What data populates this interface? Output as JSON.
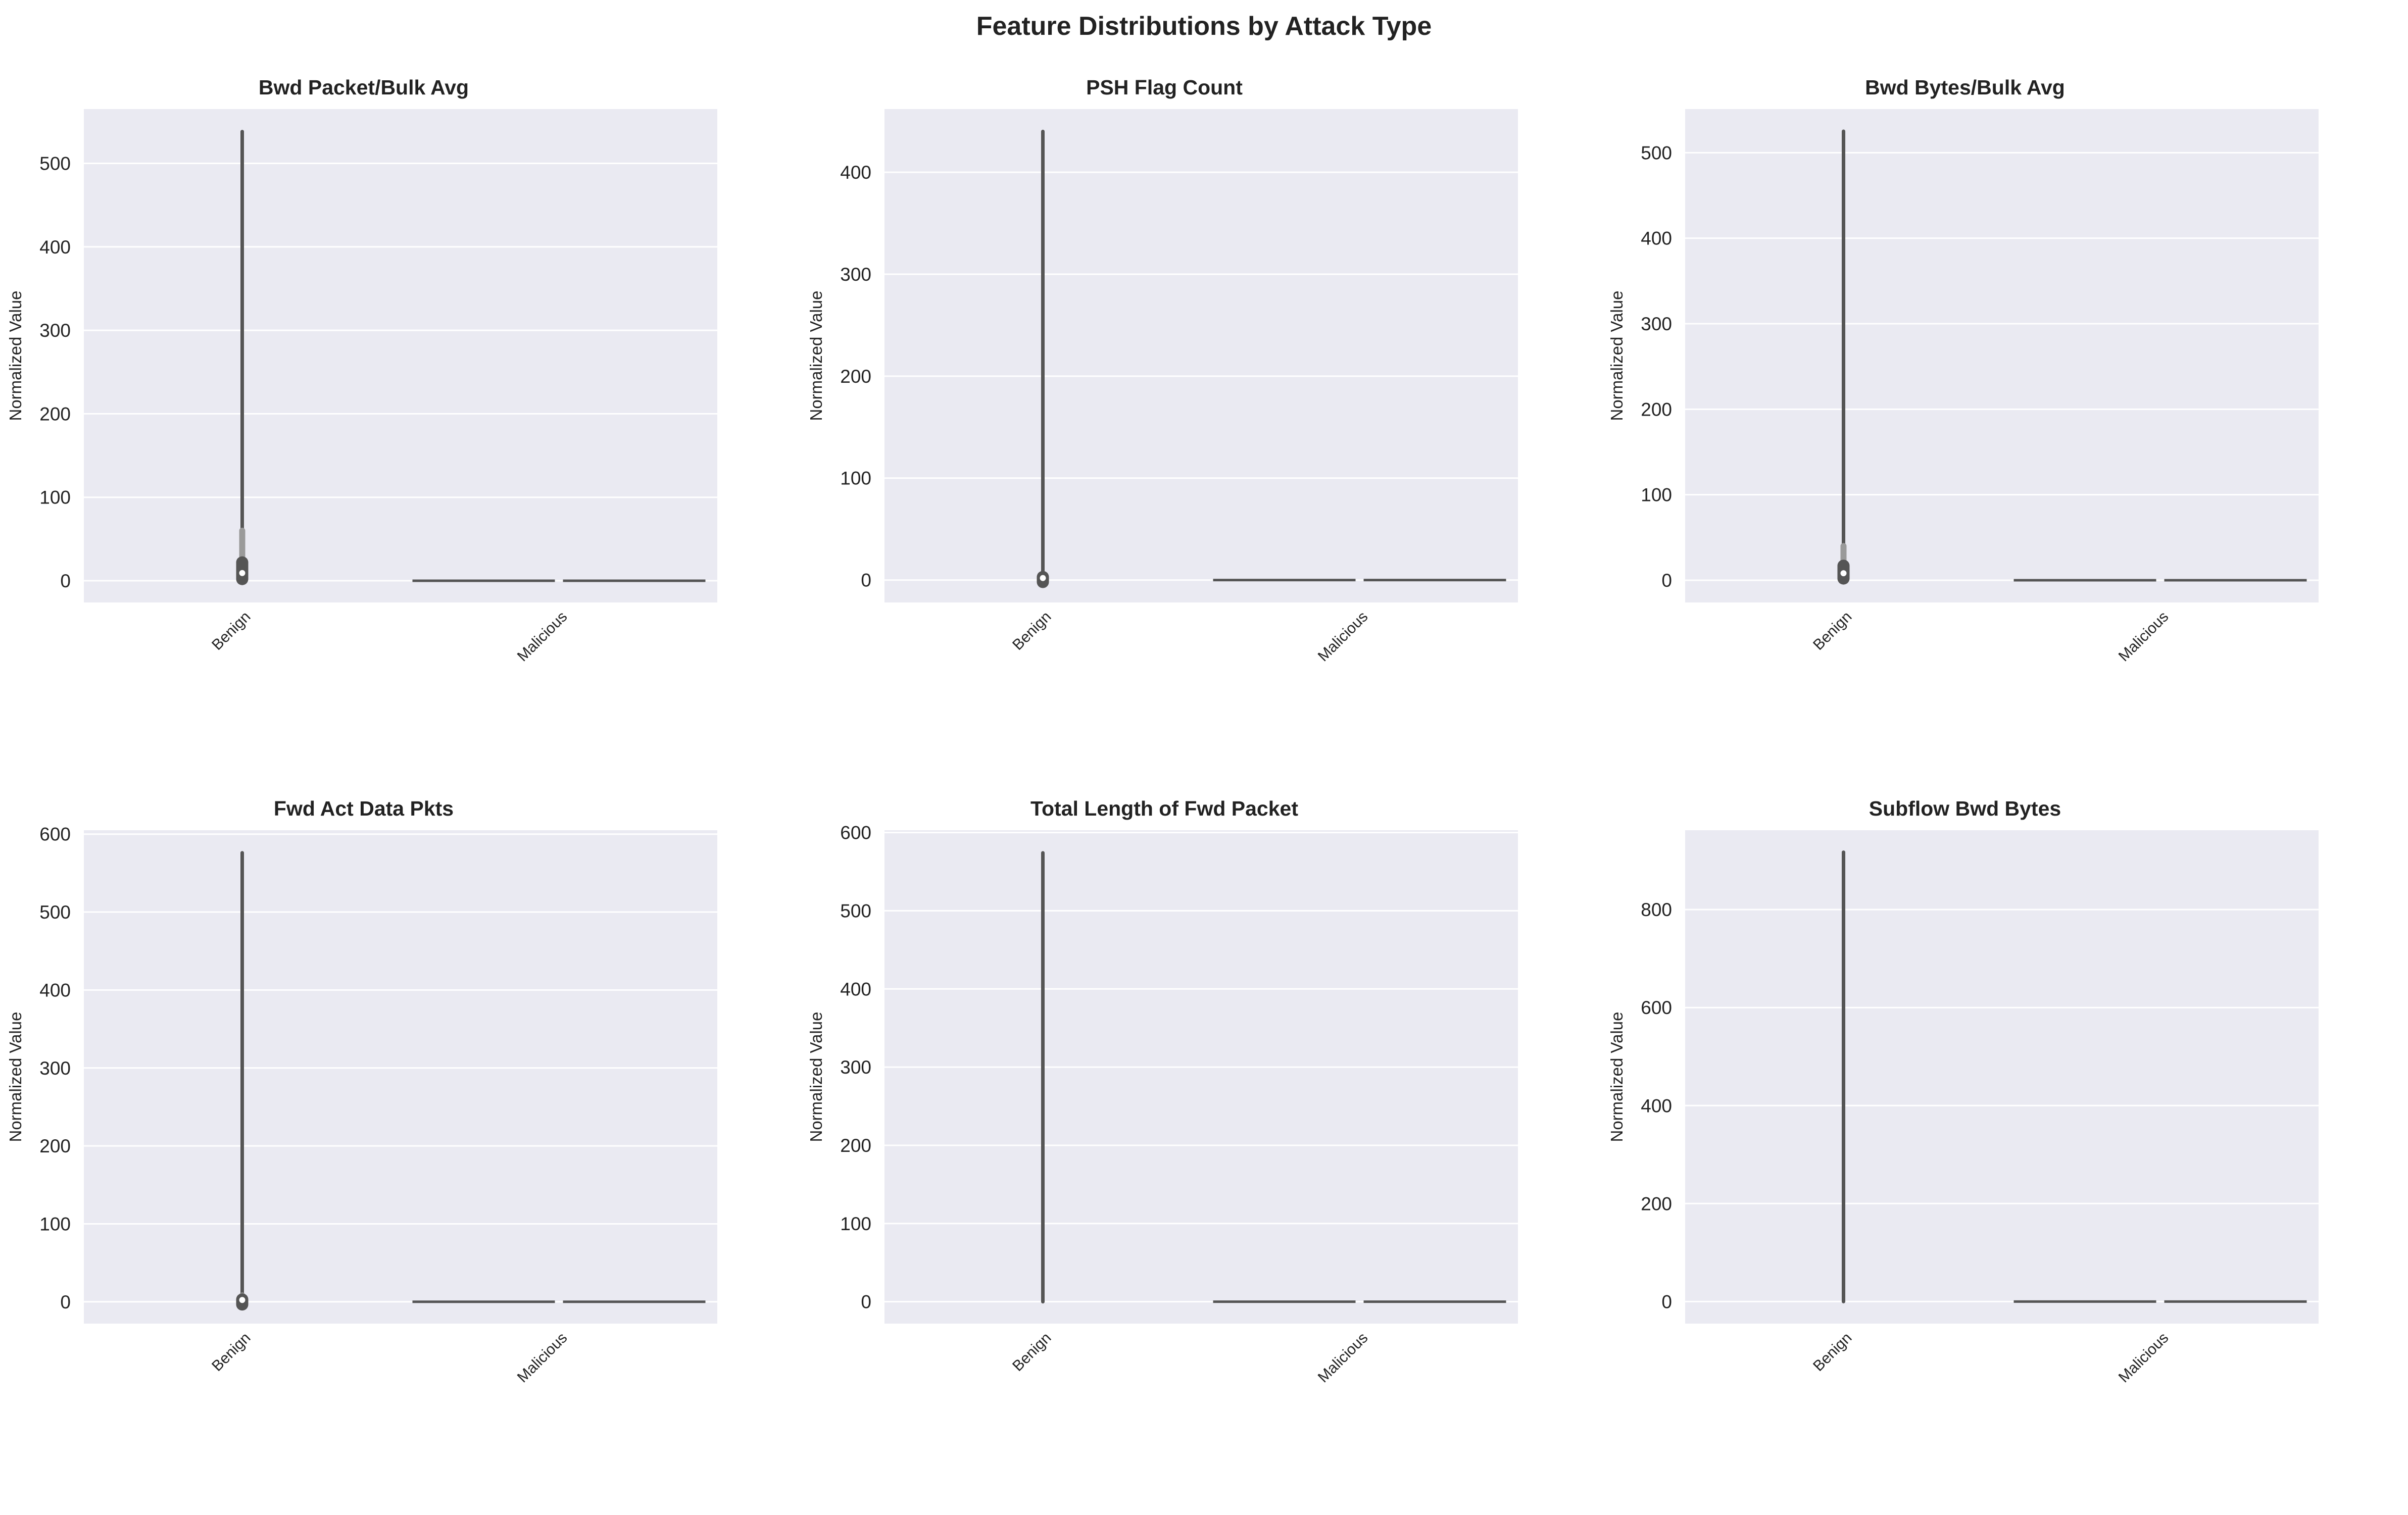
{
  "figure": {
    "title": "Feature Distributions by Attack Type"
  },
  "colors": {
    "plot_bg": "#eaeaf2",
    "grid": "#ffffff",
    "violin_line": "#555555",
    "violin_fill": "#9a9a9a"
  },
  "chart_data": [
    {
      "type": "violin",
      "title": "Bwd Packet/Bulk Avg",
      "ylabel": "Normalized Value",
      "categories": [
        "Benign",
        "Malicious"
      ],
      "ylim": [
        -26,
        565
      ],
      "yticks": [
        0,
        100,
        200,
        300,
        400,
        500
      ],
      "series": [
        {
          "category": "Benign",
          "min": 0,
          "max": 538,
          "q1": 2,
          "q3": 22,
          "median": 8,
          "dense_upper": 60
        },
        {
          "category": "Malicious",
          "min": 0,
          "max": 0
        }
      ]
    },
    {
      "type": "violin",
      "title": "PSH Flag Count",
      "ylabel": "Normalized Value",
      "categories": [
        "Benign",
        "Malicious"
      ],
      "ylim": [
        -22,
        462
      ],
      "yticks": [
        0,
        100,
        200,
        300,
        400
      ],
      "series": [
        {
          "category": "Benign",
          "min": 0,
          "max": 440,
          "q1": 0,
          "q3": 3,
          "median": 1,
          "dense_upper": 6
        },
        {
          "category": "Malicious",
          "min": 0,
          "max": 0
        }
      ]
    },
    {
      "type": "violin",
      "title": "Bwd Bytes/Bulk Avg",
      "ylabel": "Normalized Value",
      "categories": [
        "Benign",
        "Malicious"
      ],
      "ylim": [
        -26,
        551
      ],
      "yticks": [
        0,
        100,
        200,
        300,
        400,
        500
      ],
      "series": [
        {
          "category": "Benign",
          "min": 0,
          "max": 525,
          "q1": 2,
          "q3": 17,
          "median": 7,
          "dense_upper": 40
        },
        {
          "category": "Malicious",
          "min": 0,
          "max": 0
        }
      ]
    },
    {
      "type": "violin",
      "title": "Fwd Act Data Pkts",
      "ylabel": "Normalized Value",
      "categories": [
        "Benign",
        "Malicious"
      ],
      "ylim": [
        -28,
        605
      ],
      "yticks": [
        0,
        100,
        200,
        300,
        400,
        500,
        600
      ],
      "series": [
        {
          "category": "Benign",
          "min": 0,
          "max": 576,
          "q1": 0,
          "q3": 3,
          "median": 1,
          "dense_upper": 8
        },
        {
          "category": "Malicious",
          "min": 0,
          "max": 0
        }
      ]
    },
    {
      "type": "violin",
      "title": "Total Length of Fwd Packet",
      "ylabel": "Normalized Value",
      "categories": [
        "Benign",
        "Malicious"
      ],
      "ylim": [
        -28,
        603
      ],
      "yticks": [
        0,
        100,
        200,
        300,
        400,
        500,
        600
      ],
      "series": [
        {
          "category": "Benign",
          "min": 0,
          "max": 574
        },
        {
          "category": "Malicious",
          "min": 0,
          "max": 0
        }
      ]
    },
    {
      "type": "violin",
      "title": "Subflow Bwd Bytes",
      "ylabel": "Normalized Value",
      "categories": [
        "Benign",
        "Malicious"
      ],
      "ylim": [
        -45,
        962
      ],
      "yticks": [
        0,
        200,
        400,
        600,
        800
      ],
      "series": [
        {
          "category": "Benign",
          "min": 0,
          "max": 917
        },
        {
          "category": "Malicious",
          "min": 0,
          "max": 0
        }
      ]
    }
  ]
}
